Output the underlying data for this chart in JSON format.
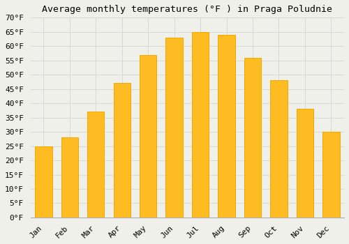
{
  "title": "Average monthly temperatures (°F ) in Praga Poludnie",
  "months": [
    "Jan",
    "Feb",
    "Mar",
    "Apr",
    "May",
    "Jun",
    "Jul",
    "Aug",
    "Sep",
    "Oct",
    "Nov",
    "Dec"
  ],
  "values": [
    25,
    28,
    37,
    47,
    57,
    63,
    65,
    64,
    56,
    48,
    38,
    30
  ],
  "bar_color": "#FFBB22",
  "bar_edge_color": "#F5A800",
  "background_color": "#F0F0EA",
  "grid_color": "#D8D8D8",
  "ylim": [
    0,
    70
  ],
  "ytick_step": 5,
  "title_fontsize": 9.5,
  "tick_fontsize": 8,
  "font_family": "monospace",
  "bar_width": 0.65
}
